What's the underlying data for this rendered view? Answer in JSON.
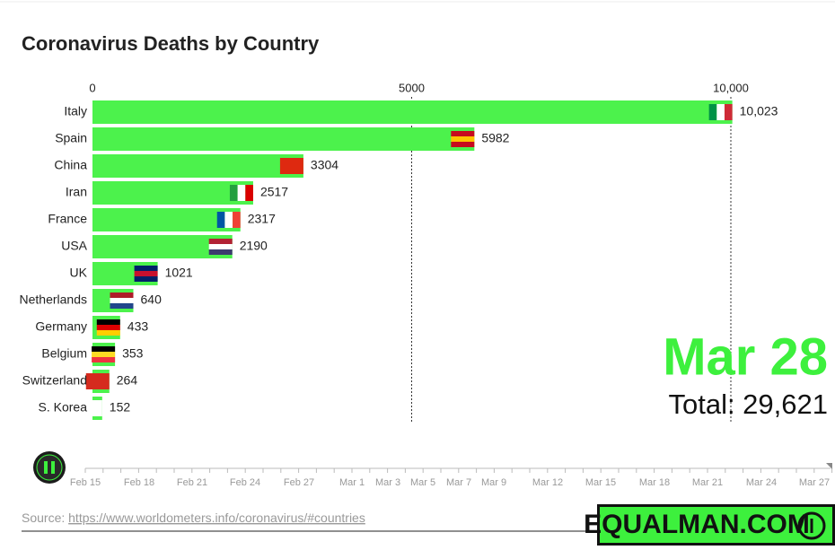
{
  "chart_data": {
    "type": "bar",
    "orientation": "horizontal",
    "title": "Coronavirus Deaths by Country",
    "categories": [
      "Italy",
      "Spain",
      "China",
      "Iran",
      "France",
      "USA",
      "UK",
      "Netherlands",
      "Germany",
      "Belgium",
      "Switzerland",
      "S. Korea"
    ],
    "values": [
      10023,
      5982,
      3304,
      2517,
      2317,
      2190,
      1021,
      640,
      433,
      353,
      264,
      152
    ],
    "value_labels": [
      "10,023",
      "5982",
      "3304",
      "2517",
      "2317",
      "2190",
      "1021",
      "640",
      "433",
      "353",
      "264",
      "152"
    ],
    "color": "#4cf24c",
    "xlim": [
      0,
      10000
    ],
    "xticks": [
      0,
      5000,
      {
        "value": 10000,
        "label": "10,000"
      }
    ],
    "grid": true,
    "date": "Mar 28",
    "total": "Total: 29,621",
    "timeline": [
      "Feb 15",
      "Feb 18",
      "Feb 21",
      "Feb 24",
      "Feb 27",
      "Mar 1",
      "Mar 3",
      "Mar 5",
      "Mar 7",
      "Mar 9",
      "Mar 12",
      "Mar 15",
      "Mar 18",
      "Mar 21",
      "Mar 24",
      "Mar 27"
    ],
    "source_prefix": "Source: ",
    "source_url": "https://www.worldometers.info/coronavirus/#countries",
    "brand": "EQUALMAN.COM"
  }
}
